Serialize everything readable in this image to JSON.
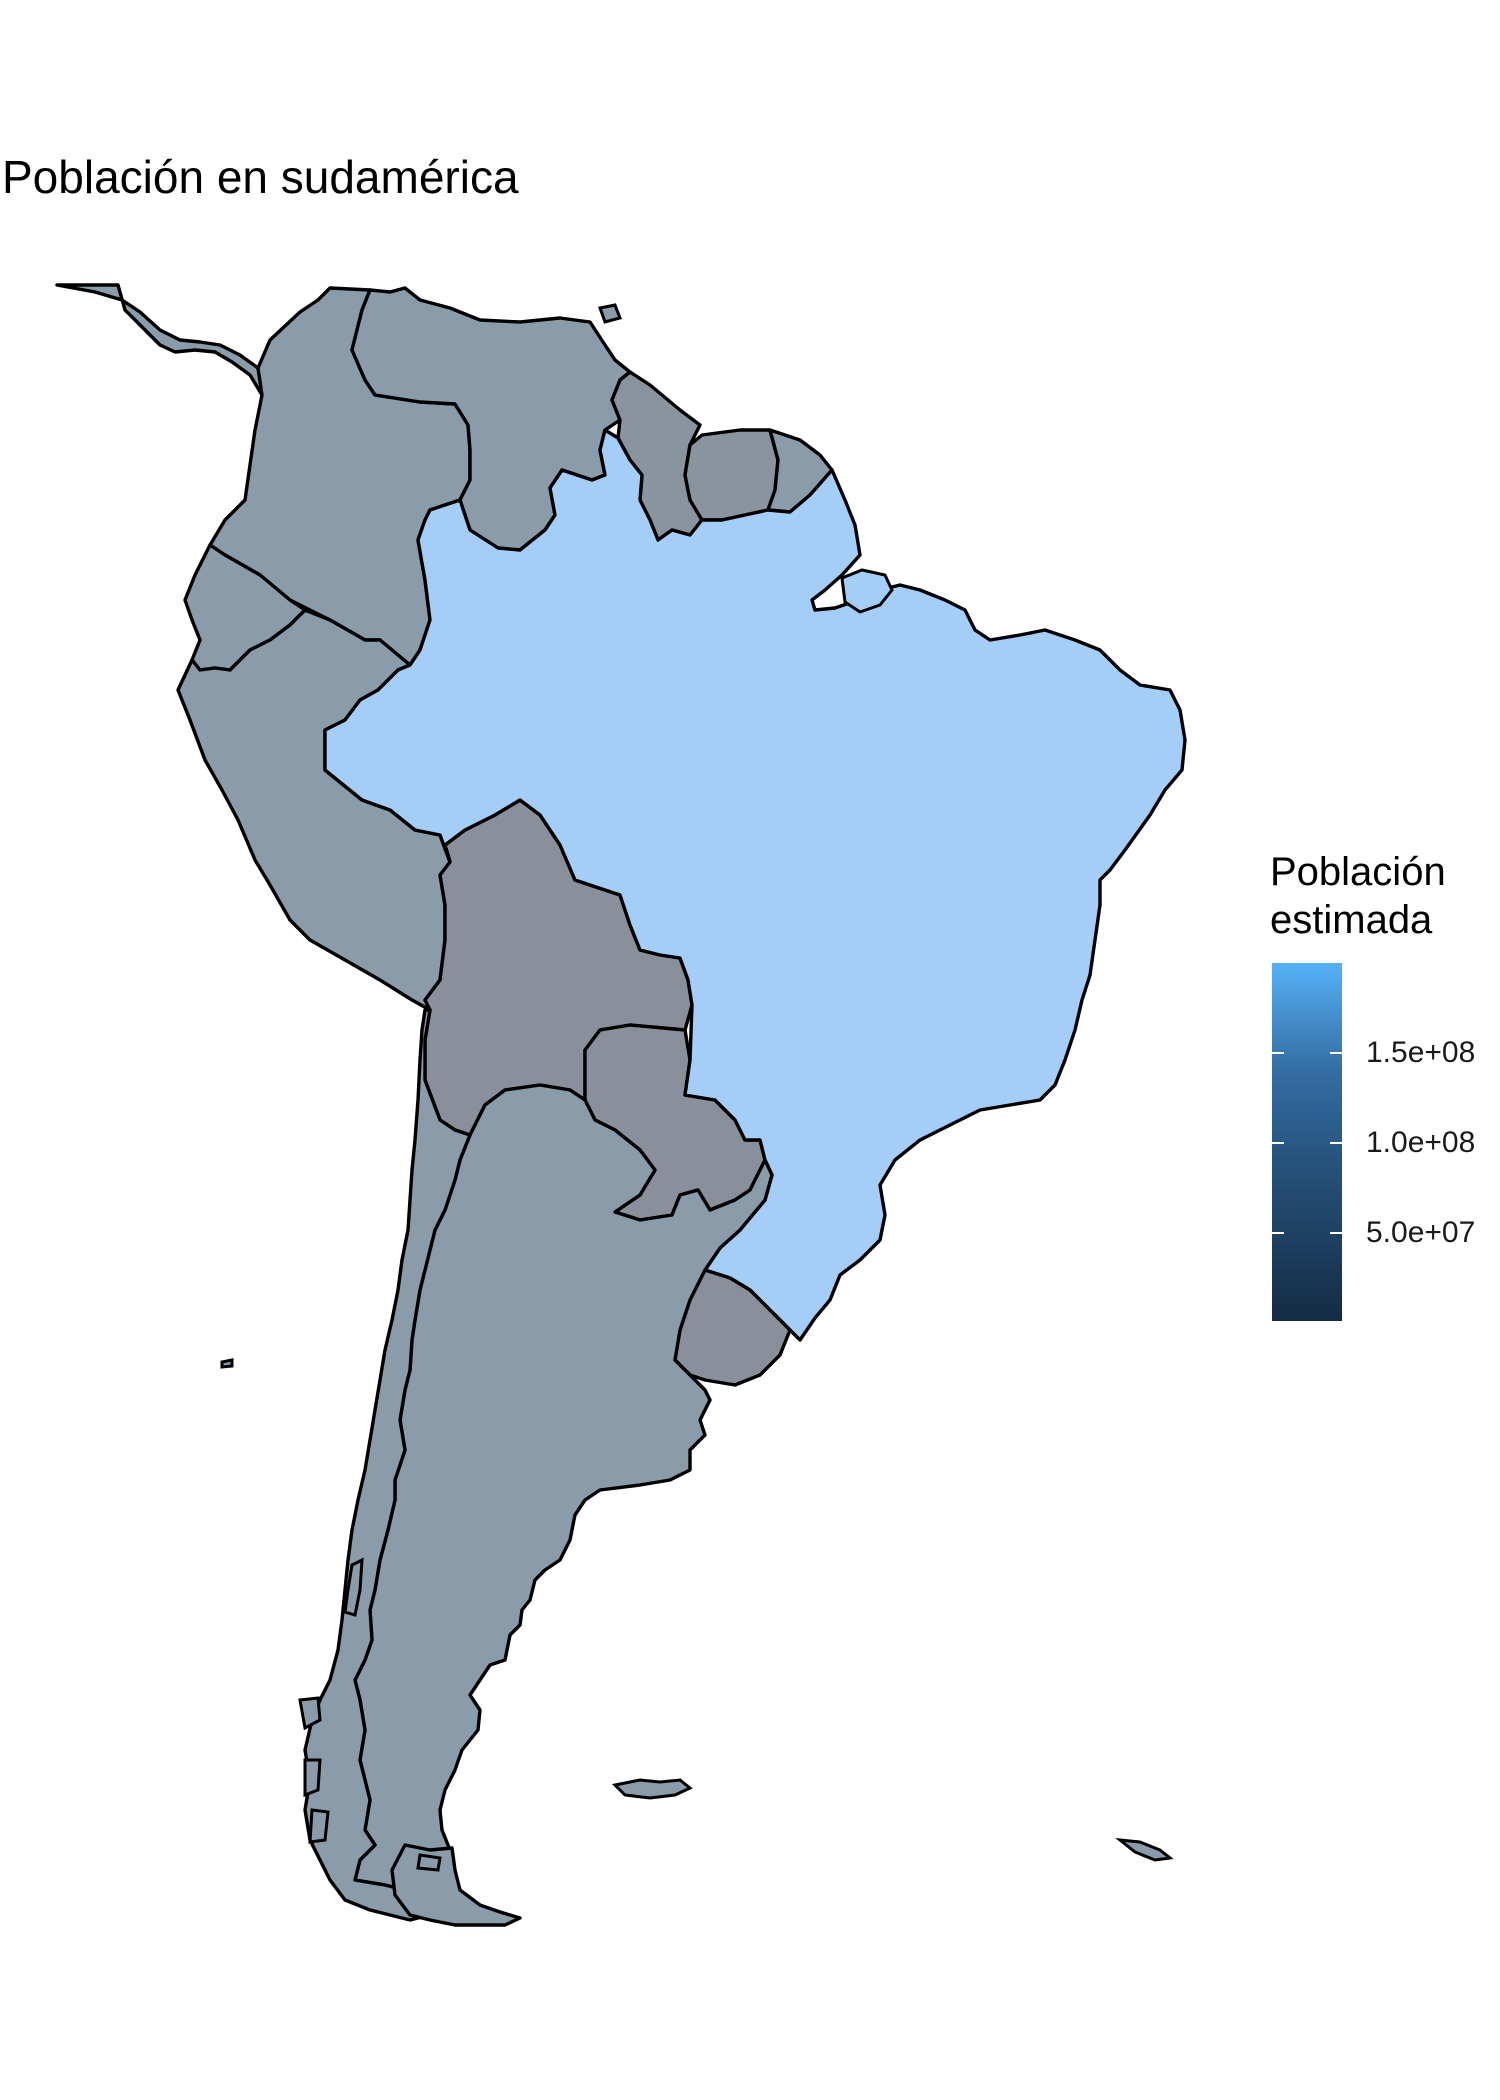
{
  "title": "Población en sudamérica",
  "legend": {
    "title_line1": "Población",
    "title_line2": "estimada",
    "ticks": [
      "1.5e+08",
      "1.0e+08",
      "5.0e+07"
    ],
    "low_color": "#132b43",
    "high_color": "#56b1f7"
  },
  "colors": {
    "brazil": "#a4cef8",
    "most_countries": "#8a9baa",
    "bolivia_paraguay": "#8a909b",
    "guianas": "#8a949f",
    "border": "#000000"
  },
  "regions": [
    "Brasil",
    "Argentina",
    "Chile",
    "Perú",
    "Colombia",
    "Venezuela",
    "Ecuador",
    "Bolivia",
    "Paraguay",
    "Uruguay",
    "Guyana",
    "Surinam",
    "Guayana Francesa",
    "Panamá"
  ]
}
